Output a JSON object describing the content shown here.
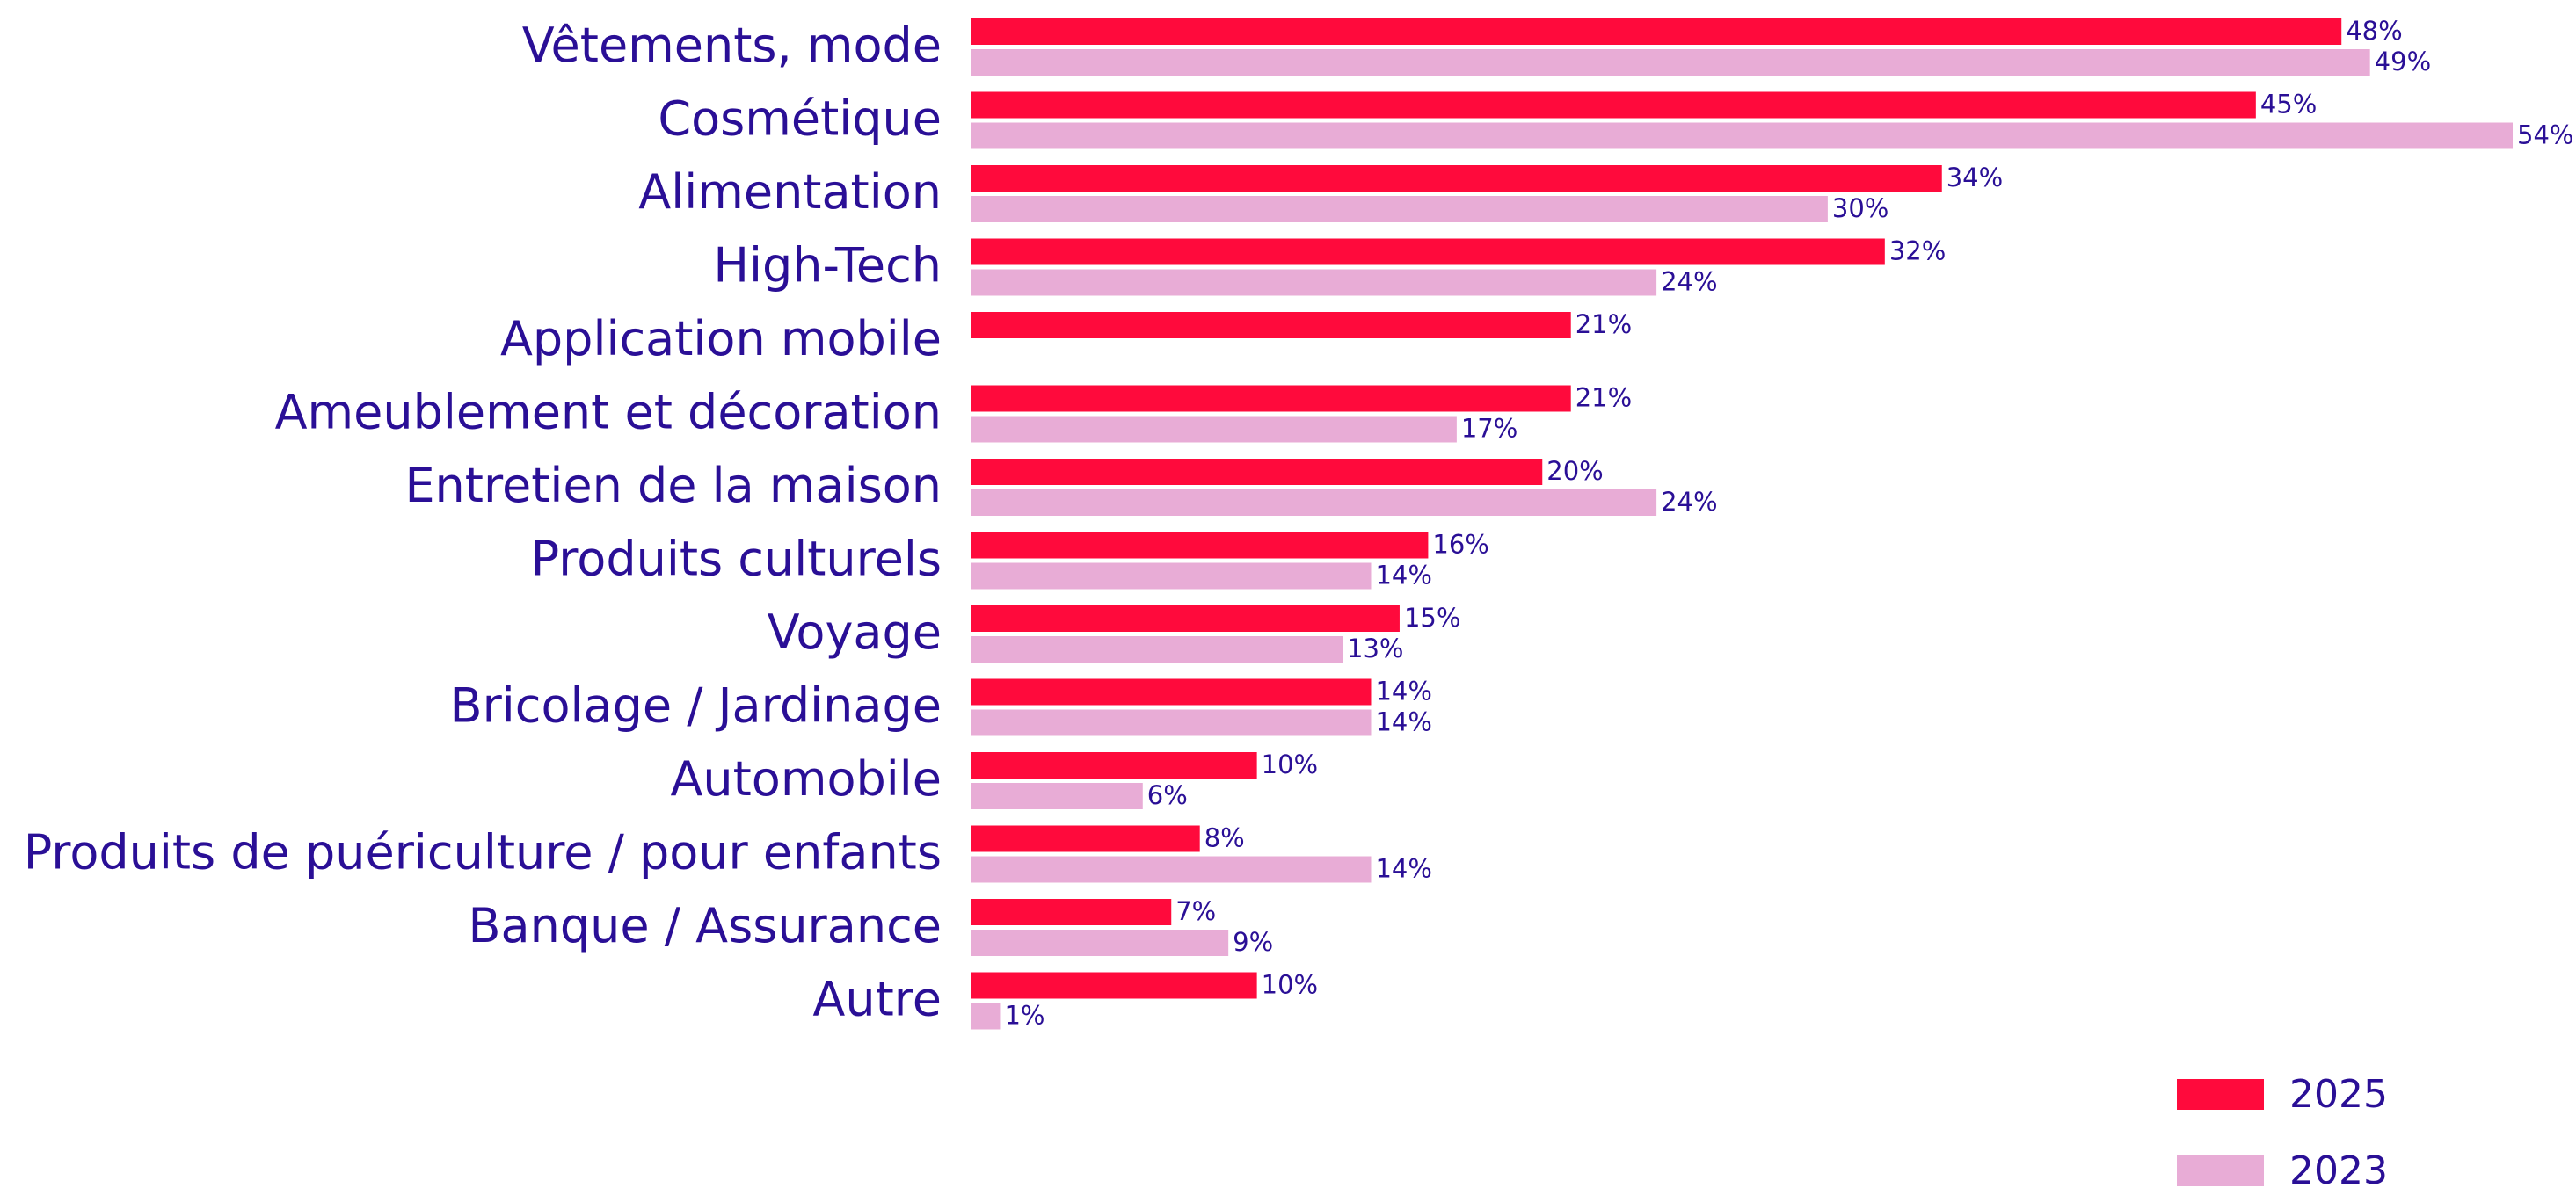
{
  "chart_data": {
    "type": "hbar",
    "categories": [
      "Vêtements, mode",
      "Cosmétique",
      "Alimentation",
      "High-Tech",
      "Application mobile",
      "Ameublement et décoration",
      "Entretien de la maison",
      "Produits culturels",
      "Voyage",
      "Bricolage / Jardinage",
      "Automobile",
      "Produits de puériculture / pour enfants",
      "Banque / Assurance",
      "Autre"
    ],
    "series": [
      {
        "name": "2025",
        "color": "#ff0a3c",
        "values": [
          48,
          45,
          34,
          32,
          21,
          21,
          20,
          16,
          15,
          14,
          10,
          8,
          7,
          10
        ],
        "value_labels": [
          "48%",
          "45%",
          "34%",
          "32%",
          "21%",
          "21%",
          "20%",
          "16%",
          "15%",
          "14%",
          "10%",
          "8%",
          "7%",
          "10%"
        ]
      },
      {
        "name": "2023",
        "color": "#e8acd6",
        "values": [
          49,
          54,
          30,
          24,
          null,
          17,
          24,
          14,
          13,
          14,
          6,
          14,
          9,
          1
        ],
        "value_labels": [
          "49%",
          "54%",
          "30%",
          "24%",
          null,
          "17%",
          "24%",
          "14%",
          "13%",
          "14%",
          "6%",
          "14%",
          "9%",
          "1%"
        ]
      }
    ],
    "legend": "bottom-right"
  }
}
